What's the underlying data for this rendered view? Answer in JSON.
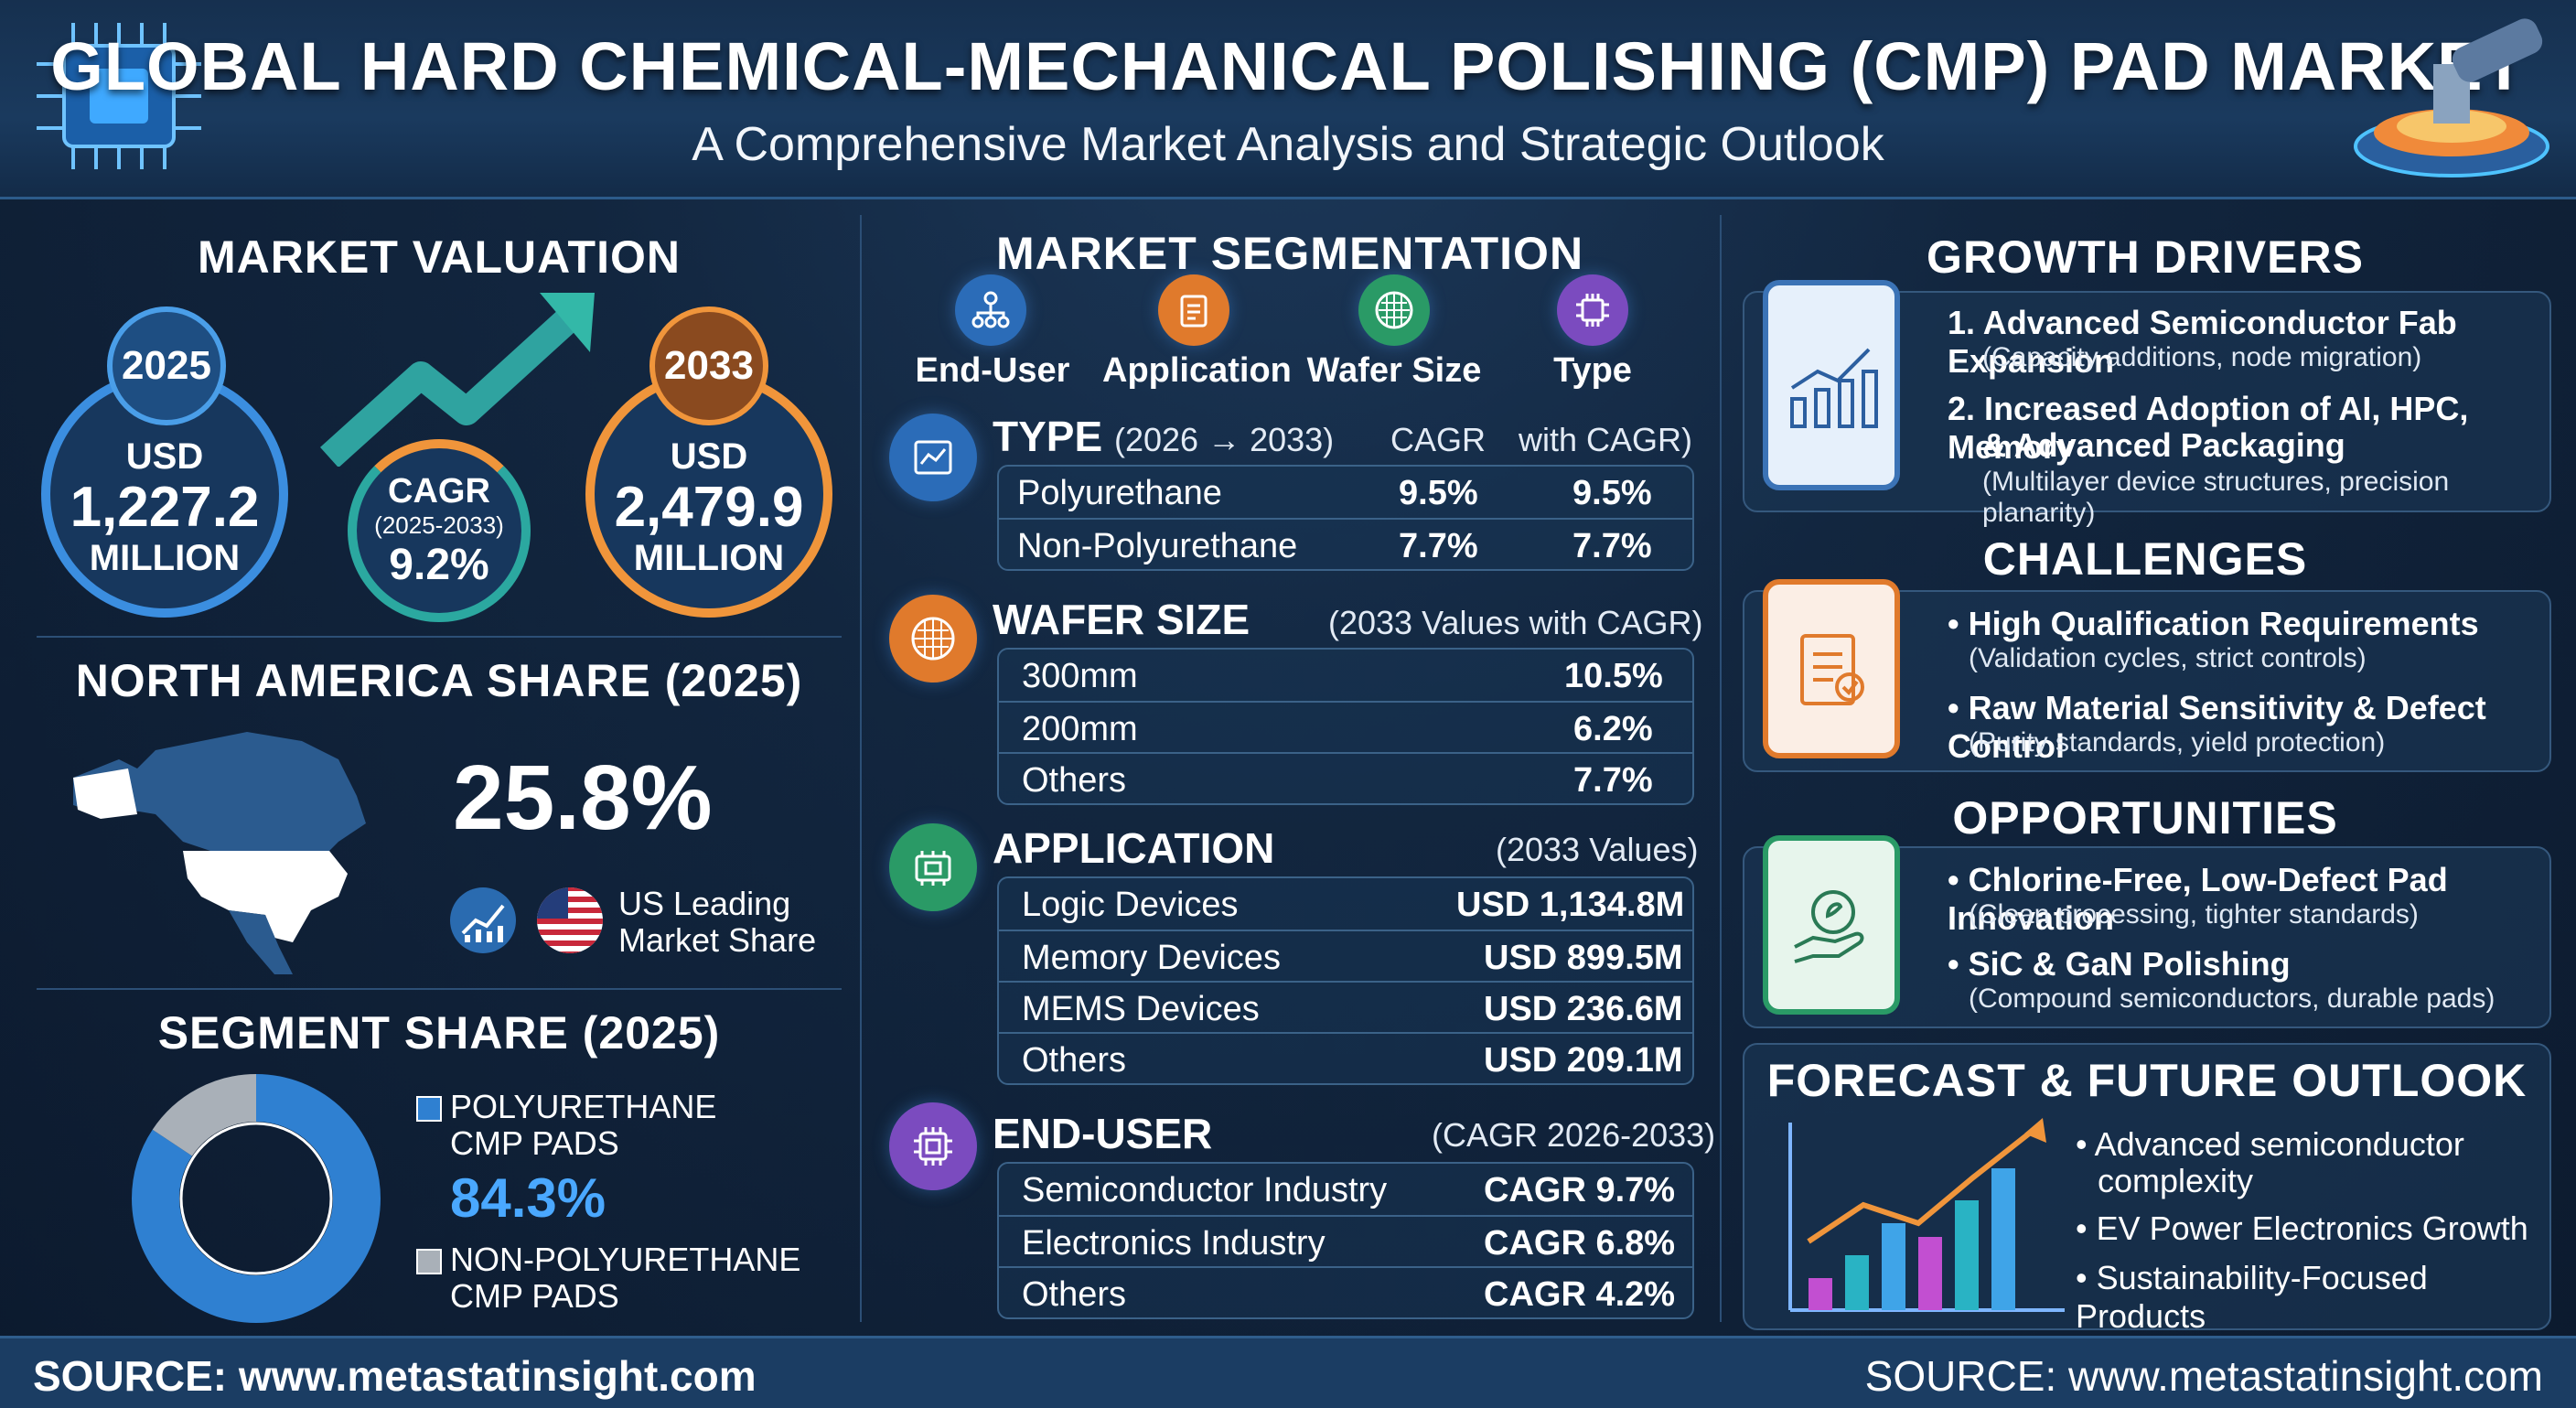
{
  "header": {
    "title": "GLOBAL HARD CHEMICAL-MECHANICAL POLISHING (CMP) PAD MARKET",
    "subtitle": "A Comprehensive Market Analysis and Strategic Outlook"
  },
  "valuation": {
    "title": "MARKET VALUATION",
    "y2025": {
      "year": "2025",
      "currency": "USD",
      "value": "1,227.2",
      "unit": "MILLION"
    },
    "cagr": {
      "label": "CAGR",
      "period": "(2025-2033)",
      "value": "9.2%"
    },
    "y2033": {
      "year": "2033",
      "currency": "USD",
      "value": "2,479.9",
      "unit": "MILLION"
    }
  },
  "north_america": {
    "title": "NORTH AMERICA SHARE (2025)",
    "share": "25.8%",
    "note_line1": "US Leading",
    "note_line2": "Market Share"
  },
  "segment_share": {
    "title": "SEGMENT SHARE (2025)",
    "polyurethane_line1": "POLYURETHANE",
    "polyurethane_line2": "CMP PADS",
    "polyurethane_value": "84.3%",
    "polyurethane_fraction": 0.843,
    "non_line1": "NON-POLYURETHANE",
    "non_line2": "CMP PADS",
    "colors": {
      "polyurethane": "#2f80d1",
      "non_polyurethane": "#a9b0b8"
    }
  },
  "segmentation": {
    "title": "MARKET SEGMENTATION",
    "categories": [
      "End-User",
      "Application",
      "Wafer Size",
      "Type"
    ],
    "type": {
      "head": "TYPE",
      "period": "(2026 → 2033)",
      "col2": "CAGR",
      "col3": "with CAGR)",
      "rows": [
        {
          "name": "Polyurethane",
          "v1": "9.5%",
          "v2": "9.5%"
        },
        {
          "name": "Non-Polyurethane",
          "v1": "7.7%",
          "v2": "7.7%"
        }
      ]
    },
    "wafer": {
      "head": "WAFER SIZE",
      "note": "(2033 Values with CAGR)",
      "rows": [
        {
          "name": "300mm",
          "value": "10.5%"
        },
        {
          "name": "200mm",
          "value": "6.2%"
        },
        {
          "name": "Others",
          "value": "7.7%"
        }
      ]
    },
    "application": {
      "head": "APPLICATION",
      "note": "(2033 Values)",
      "rows": [
        {
          "name": "Logic Devices",
          "value": "USD 1,134.8M"
        },
        {
          "name": "Memory Devices",
          "value": "USD 899.5M"
        },
        {
          "name": "MEMS Devices",
          "value": "USD 236.6M"
        },
        {
          "name": "Others",
          "value": "USD 209.1M"
        }
      ]
    },
    "end_user": {
      "head": "END-USER",
      "note": "(CAGR 2026-2033)",
      "rows": [
        {
          "name": "Semiconductor Industry",
          "value": "CAGR 9.7%"
        },
        {
          "name": "Electronics Industry",
          "value": "CAGR 6.8%"
        },
        {
          "name": "Others",
          "value": "CAGR 4.2%"
        }
      ]
    }
  },
  "growth_drivers": {
    "title": "GROWTH DRIVERS",
    "items": [
      {
        "head": "1. Advanced Semiconductor Fab Expansion",
        "sub": "(Capacity additions, node migration)"
      },
      {
        "head": "2. Increased Adoption of AI, HPC, Memory",
        "head2": "& Advanced Packaging",
        "sub": "(Multilayer device structures, precision planarity)"
      }
    ]
  },
  "challenges": {
    "title": "CHALLENGES",
    "items": [
      {
        "head": "• High Qualification Requirements",
        "sub": "(Validation cycles, strict controls)"
      },
      {
        "head": "• Raw Material Sensitivity & Defect Control",
        "sub": "(Purity standards, yield protection)"
      }
    ]
  },
  "opportunities": {
    "title": "OPPORTUNITIES",
    "items": [
      {
        "head": "• Chlorine-Free, Low-Defect Pad Innovation",
        "sub": "(Clean processing, tighter standards)"
      },
      {
        "head": "• SiC & GaN Polishing",
        "sub": "(Compound semiconductors, durable pads)"
      }
    ]
  },
  "forecast": {
    "title": "FORECAST & FUTURE OUTLOOK",
    "bullets": [
      "• Advanced semiconductor",
      "complexity",
      "• EV Power Electronics Growth",
      "• Sustainability-Focused Products"
    ]
  },
  "footer": {
    "left": "SOURCE: www.metastatinsight.com",
    "right": "SOURCE: www.metastatinsight.com"
  },
  "icons": {
    "chip": "chip-icon",
    "polisher": "polishing-machine-icon",
    "hierarchy": "hierarchy-icon",
    "clipboard": "clipboard-icon",
    "wafer": "wafer-icon",
    "processor": "processor-icon",
    "trend": "trend-chart-icon",
    "flag": "us-flag-icon",
    "hand_coin": "hand-coin-icon"
  }
}
